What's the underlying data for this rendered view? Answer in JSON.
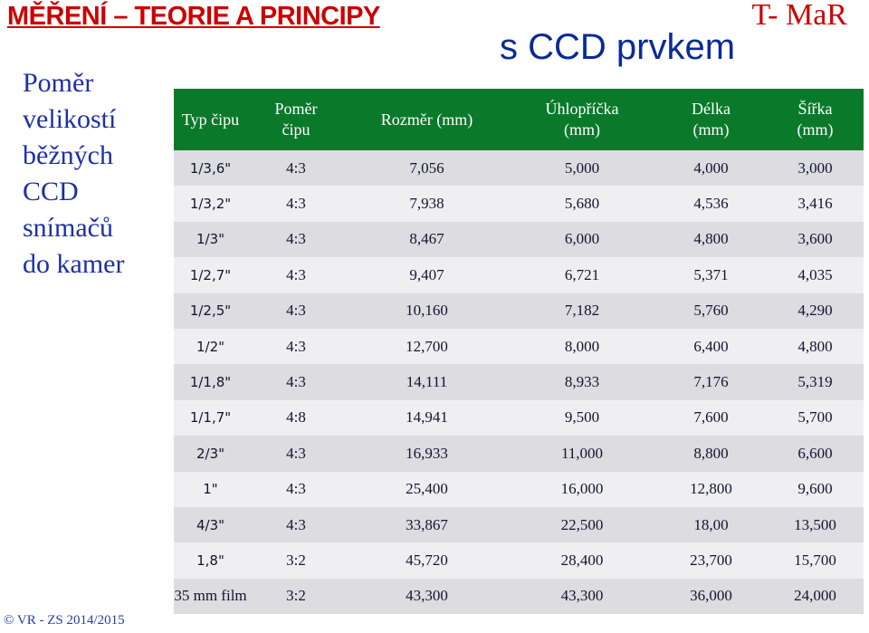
{
  "header": {
    "title": "MĚŘENÍ – TEORIE A PRINCIPY",
    "brand": "T- MaR",
    "subtitle": "s CCD prvkem"
  },
  "side_title": [
    "Poměr",
    "velikostí",
    "běžných",
    "CCD",
    "snímačů",
    "do kamer"
  ],
  "table": {
    "headers": [
      [
        "Typ čipu"
      ],
      [
        "Poměr",
        "čipu"
      ],
      [
        "Rozměr (mm)"
      ],
      [
        "Úhlopříčka",
        "(mm)"
      ],
      [
        "Délka",
        "(mm)"
      ],
      [
        "Šířka",
        "(mm)"
      ]
    ],
    "rows": [
      [
        "1/3,6\"",
        "4:3",
        "7,056",
        "5,000",
        "4,000",
        "3,000"
      ],
      [
        "1/3,2\"",
        "4:3",
        "7,938",
        "5,680",
        "4,536",
        "3,416"
      ],
      [
        "1/3\"",
        "4:3",
        "8,467",
        "6,000",
        "4,800",
        "3,600"
      ],
      [
        "1/2,7\"",
        "4:3",
        "9,407",
        "6,721",
        "5,371",
        "4,035"
      ],
      [
        "1/2,5\"",
        "4:3",
        "10,160",
        "7,182",
        "5,760",
        "4,290"
      ],
      [
        "1/2\"",
        "4:3",
        "12,700",
        "8,000",
        "6,400",
        "4,800"
      ],
      [
        "1/1,8\"",
        "4:3",
        "14,111",
        "8,933",
        "7,176",
        "5,319"
      ],
      [
        "1/1,7\"",
        "4:8",
        "14,941",
        "9,500",
        "7,600",
        "5,700"
      ],
      [
        "2/3\"",
        "4:3",
        "16,933",
        "11,000",
        "8,800",
        "6,600"
      ],
      [
        "1\"",
        "4:3",
        "25,400",
        "16,000",
        "12,800",
        "9,600"
      ],
      [
        "4/3\"",
        "4:3",
        "33,867",
        "22,500",
        "18,00",
        "13,500"
      ],
      [
        "1,8\"",
        "3:2",
        "45,720",
        "28,400",
        "23,700",
        "15,700"
      ],
      [
        "35 mm film",
        "3:2",
        "43,300",
        "43,300",
        "36,000",
        "24,000"
      ]
    ]
  },
  "footer": "© VR - ZS 2014/2015",
  "colors": {
    "title_red": "#cc0000",
    "subtitle_blue": "#0a2a9a",
    "side_blue": "#1d2fa6",
    "header_green": "#0a7a2a",
    "row_dark": "#dcdce1",
    "row_light": "#efeff2"
  }
}
